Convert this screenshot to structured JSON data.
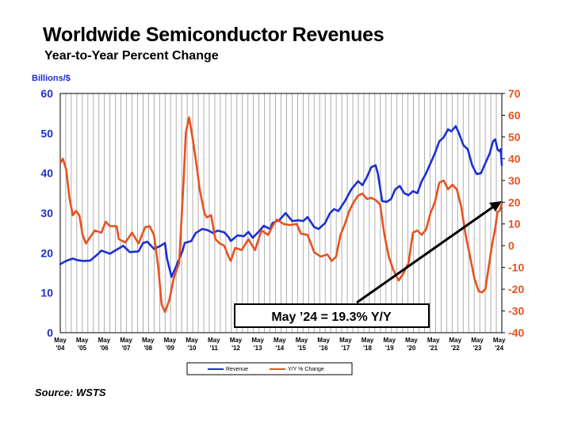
{
  "title": "Worldwide Semiconductor Revenues",
  "subtitle": "Year-to-Year Percent Change",
  "source": "Source: WSTS",
  "chart_data": {
    "type": "line",
    "title": "Worldwide Semiconductor Revenues",
    "subtitle": "Year-to-Year Percent Change",
    "ylabel": "Billions/$",
    "ylim": [
      0,
      60
    ],
    "y_ticks": [
      "0",
      "10",
      "20",
      "30",
      "40",
      "50",
      "60"
    ],
    "y2lim": [
      -40,
      70
    ],
    "y2_ticks": [
      "-40",
      "-30",
      "-20",
      "-10",
      "0",
      "10",
      "20",
      "30",
      "40",
      "50",
      "60",
      "70"
    ],
    "x_tick_labels": [
      {
        "month": "May",
        "year": "'04"
      },
      {
        "month": "May",
        "year": "'05"
      },
      {
        "month": "May",
        "year": "'06"
      },
      {
        "month": "May",
        "year": "'07"
      },
      {
        "month": "May",
        "year": "'08"
      },
      {
        "month": "May",
        "year": "'09"
      },
      {
        "month": "May",
        "year": "'10"
      },
      {
        "month": "May",
        "year": "'11"
      },
      {
        "month": "May",
        "year": "'12"
      },
      {
        "month": "May",
        "year": "'13"
      },
      {
        "month": "May",
        "year": "'14"
      },
      {
        "month": "May",
        "year": "'15"
      },
      {
        "month": "May",
        "year": "'16"
      },
      {
        "month": "May",
        "year": "'17"
      },
      {
        "month": "May",
        "year": "'18"
      },
      {
        "month": "May",
        "year": "'19"
      },
      {
        "month": "May",
        "year": "'20"
      },
      {
        "month": "May",
        "year": "'21"
      },
      {
        "month": "May",
        "year": "'22"
      },
      {
        "month": "May",
        "year": "'23"
      },
      {
        "month": "May",
        "year": "'24"
      }
    ],
    "grid": true,
    "legend": "bottom-center",
    "annotation": "May ’24 = 19.3% Y/Y",
    "series": [
      {
        "name": "Revenue",
        "axis": "left",
        "color": "#1b2fd6",
        "points": [
          [
            2004.33,
            17.2
          ],
          [
            2004.6,
            18.0
          ],
          [
            2004.9,
            18.6
          ],
          [
            2005.1,
            18.2
          ],
          [
            2005.4,
            18.0
          ],
          [
            2005.7,
            18.1
          ],
          [
            2006.0,
            19.5
          ],
          [
            2006.2,
            20.6
          ],
          [
            2006.6,
            19.8
          ],
          [
            2006.9,
            20.8
          ],
          [
            2007.2,
            21.8
          ],
          [
            2007.5,
            20.2
          ],
          [
            2007.9,
            20.4
          ],
          [
            2008.1,
            22.5
          ],
          [
            2008.3,
            22.8
          ],
          [
            2008.6,
            21.0
          ],
          [
            2008.9,
            21.8
          ],
          [
            2009.1,
            22.5
          ],
          [
            2009.2,
            18.5
          ],
          [
            2009.4,
            14.0
          ],
          [
            2009.6,
            16.5
          ],
          [
            2009.9,
            20.5
          ],
          [
            2010.0,
            22.5
          ],
          [
            2010.3,
            23.0
          ],
          [
            2010.5,
            25.0
          ],
          [
            2010.8,
            26.0
          ],
          [
            2011.0,
            25.8
          ],
          [
            2011.3,
            25.0
          ],
          [
            2011.5,
            25.6
          ],
          [
            2011.8,
            25.2
          ],
          [
            2012.0,
            24.0
          ],
          [
            2012.1,
            23.0
          ],
          [
            2012.4,
            24.4
          ],
          [
            2012.7,
            24.2
          ],
          [
            2012.9,
            25.3
          ],
          [
            2013.1,
            23.8
          ],
          [
            2013.4,
            25.5
          ],
          [
            2013.6,
            26.8
          ],
          [
            2013.9,
            26.0
          ],
          [
            2014.0,
            27.5
          ],
          [
            2014.3,
            28.2
          ],
          [
            2014.6,
            30.0
          ],
          [
            2014.9,
            28.0
          ],
          [
            2015.2,
            28.2
          ],
          [
            2015.4,
            28.0
          ],
          [
            2015.6,
            29.0
          ],
          [
            2015.9,
            26.5
          ],
          [
            2016.1,
            26.0
          ],
          [
            2016.4,
            27.5
          ],
          [
            2016.6,
            29.8
          ],
          [
            2016.8,
            31.0
          ],
          [
            2017.0,
            30.5
          ],
          [
            2017.3,
            33.0
          ],
          [
            2017.6,
            36.0
          ],
          [
            2017.9,
            38.0
          ],
          [
            2018.1,
            37.0
          ],
          [
            2018.3,
            39.0
          ],
          [
            2018.5,
            41.5
          ],
          [
            2018.7,
            42.0
          ],
          [
            2018.8,
            40.0
          ],
          [
            2019.0,
            33.0
          ],
          [
            2019.2,
            32.8
          ],
          [
            2019.4,
            33.5
          ],
          [
            2019.6,
            36.0
          ],
          [
            2019.8,
            36.8
          ],
          [
            2020.0,
            35.0
          ],
          [
            2020.2,
            34.5
          ],
          [
            2020.4,
            35.5
          ],
          [
            2020.6,
            35.0
          ],
          [
            2020.8,
            38.0
          ],
          [
            2021.0,
            40.0
          ],
          [
            2021.2,
            42.5
          ],
          [
            2021.4,
            45.0
          ],
          [
            2021.6,
            48.0
          ],
          [
            2021.8,
            49.0
          ],
          [
            2022.0,
            51.0
          ],
          [
            2022.15,
            50.5
          ],
          [
            2022.35,
            51.8
          ],
          [
            2022.5,
            50.0
          ],
          [
            2022.7,
            47.0
          ],
          [
            2022.9,
            46.0
          ],
          [
            2023.1,
            42.0
          ],
          [
            2023.3,
            39.8
          ],
          [
            2023.5,
            40.0
          ],
          [
            2023.7,
            42.5
          ],
          [
            2023.9,
            45.0
          ],
          [
            2024.05,
            48.0
          ],
          [
            2024.15,
            48.5
          ],
          [
            2024.25,
            46.0
          ],
          [
            2024.35,
            45.5
          ],
          [
            2024.4,
            46.0
          ],
          [
            2024.45,
            42.0
          ]
        ]
      },
      {
        "name": "Y/Y % Change",
        "axis": "right",
        "color": "#e8511f",
        "points": [
          [
            2004.33,
            38.0
          ],
          [
            2004.45,
            40.0
          ],
          [
            2004.6,
            35.0
          ],
          [
            2004.75,
            22.0
          ],
          [
            2004.9,
            14.0
          ],
          [
            2005.05,
            16.0
          ],
          [
            2005.2,
            14.0
          ],
          [
            2005.35,
            5.0
          ],
          [
            2005.5,
            1.0
          ],
          [
            2005.7,
            4.0
          ],
          [
            2005.9,
            7.0
          ],
          [
            2006.2,
            6.0
          ],
          [
            2006.4,
            11.0
          ],
          [
            2006.6,
            9.0
          ],
          [
            2006.9,
            9.0
          ],
          [
            2007.0,
            3.0
          ],
          [
            2007.3,
            1.5
          ],
          [
            2007.6,
            6.0
          ],
          [
            2007.9,
            1.0
          ],
          [
            2008.2,
            8.5
          ],
          [
            2008.4,
            9.0
          ],
          [
            2008.6,
            5.0
          ],
          [
            2008.8,
            -10.0
          ],
          [
            2008.95,
            -27.0
          ],
          [
            2009.1,
            -30.5
          ],
          [
            2009.3,
            -25.0
          ],
          [
            2009.5,
            -15.0
          ],
          [
            2009.75,
            -8.0
          ],
          [
            2009.95,
            30.0
          ],
          [
            2010.05,
            52.0
          ],
          [
            2010.2,
            59.0
          ],
          [
            2010.35,
            50.0
          ],
          [
            2010.5,
            40.0
          ],
          [
            2010.7,
            25.0
          ],
          [
            2010.9,
            15.0
          ],
          [
            2011.0,
            13.0
          ],
          [
            2011.2,
            14.0
          ],
          [
            2011.4,
            3.0
          ],
          [
            2011.6,
            1.0
          ],
          [
            2011.8,
            0.0
          ],
          [
            2012.0,
            -5.0
          ],
          [
            2012.1,
            -7.0
          ],
          [
            2012.3,
            -1.0
          ],
          [
            2012.6,
            -2.0
          ],
          [
            2012.9,
            3.0
          ],
          [
            2013.2,
            -2.0
          ],
          [
            2013.5,
            7.0
          ],
          [
            2013.8,
            5.0
          ],
          [
            2014.0,
            9.0
          ],
          [
            2014.2,
            12.0
          ],
          [
            2014.5,
            10.0
          ],
          [
            2014.8,
            9.5
          ],
          [
            2015.1,
            10.0
          ],
          [
            2015.3,
            5.5
          ],
          [
            2015.6,
            5.0
          ],
          [
            2015.9,
            -3.0
          ],
          [
            2016.2,
            -5.0
          ],
          [
            2016.5,
            -4.0
          ],
          [
            2016.7,
            -7.0
          ],
          [
            2016.9,
            -5.0
          ],
          [
            2017.1,
            5.0
          ],
          [
            2017.3,
            10.0
          ],
          [
            2017.5,
            16.0
          ],
          [
            2017.7,
            20.0
          ],
          [
            2017.9,
            23.0
          ],
          [
            2018.1,
            24.0
          ],
          [
            2018.3,
            21.5
          ],
          [
            2018.5,
            22.0
          ],
          [
            2018.7,
            21.0
          ],
          [
            2018.9,
            19.0
          ],
          [
            2019.1,
            5.0
          ],
          [
            2019.3,
            -5.0
          ],
          [
            2019.5,
            -11.0
          ],
          [
            2019.75,
            -16.0
          ],
          [
            2019.95,
            -13.0
          ],
          [
            2020.2,
            -8.0
          ],
          [
            2020.4,
            6.0
          ],
          [
            2020.6,
            7.0
          ],
          [
            2020.8,
            5.0
          ],
          [
            2021.0,
            7.5
          ],
          [
            2021.2,
            15.0
          ],
          [
            2021.4,
            20.0
          ],
          [
            2021.6,
            29.0
          ],
          [
            2021.8,
            30.0
          ],
          [
            2022.0,
            26.0
          ],
          [
            2022.2,
            28.0
          ],
          [
            2022.4,
            26.0
          ],
          [
            2022.6,
            18.0
          ],
          [
            2022.8,
            5.0
          ],
          [
            2023.0,
            -5.0
          ],
          [
            2023.2,
            -15.0
          ],
          [
            2023.4,
            -21.0
          ],
          [
            2023.55,
            -21.5
          ],
          [
            2023.7,
            -20.0
          ],
          [
            2023.85,
            -10.0
          ],
          [
            2024.0,
            0.0
          ],
          [
            2024.15,
            8.0
          ],
          [
            2024.25,
            15.5
          ],
          [
            2024.35,
            16.0
          ],
          [
            2024.45,
            19.3
          ]
        ]
      }
    ]
  }
}
